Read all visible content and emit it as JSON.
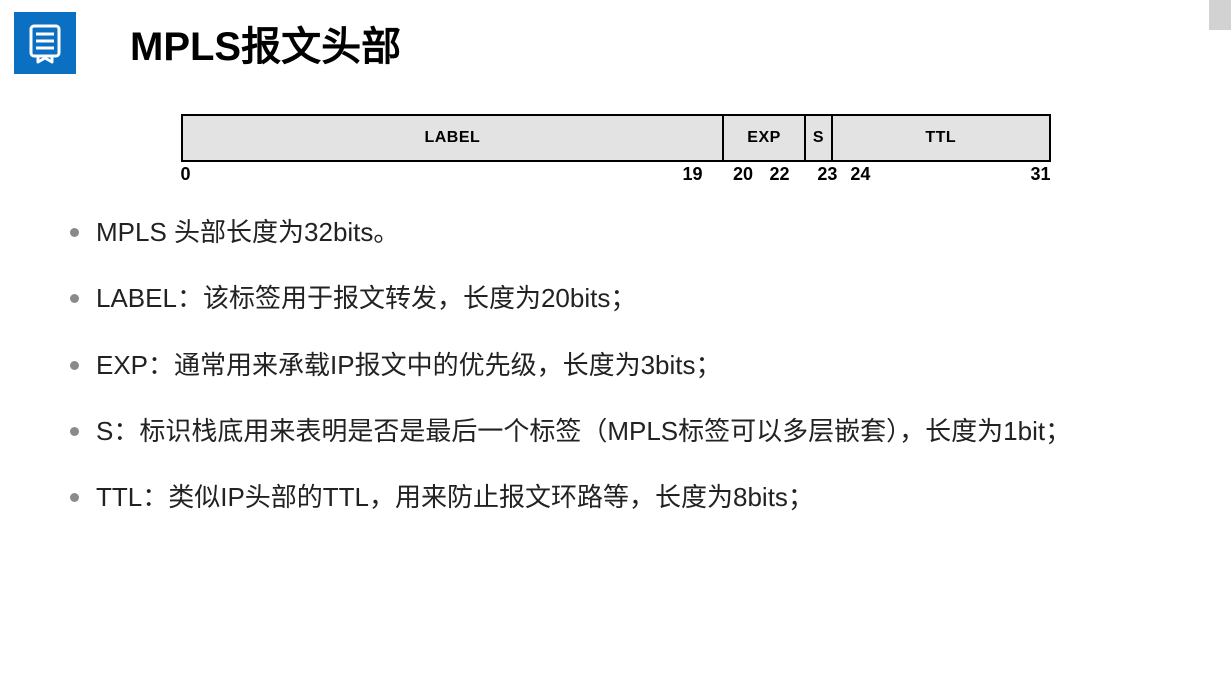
{
  "colors": {
    "primary": "#0b6fc2",
    "title_text": "#2c2c2c",
    "field_bg": "#e3e3e3",
    "field_border": "#000000",
    "bullet_dot": "#8a8a8a",
    "body_text": "#222222"
  },
  "header": {
    "title": "MPLS报文头部",
    "icon_name": "document-list-icon"
  },
  "diagram": {
    "total_bits": 32,
    "background_color": "#e3e3e3",
    "border_color": "#000000",
    "label_fontsize": 16,
    "bit_fontsize": 18,
    "fields": [
      {
        "name": "LABEL",
        "start": 0,
        "end": 19,
        "bits": 20
      },
      {
        "name": "EXP",
        "start": 20,
        "end": 22,
        "bits": 3
      },
      {
        "name": "S",
        "start": 23,
        "end": 23,
        "bits": 1
      },
      {
        "name": "TTL",
        "start": 24,
        "end": 31,
        "bits": 8
      }
    ],
    "bit_markers": [
      {
        "value": "0",
        "pos_pct": 0.0,
        "align": "left"
      },
      {
        "value": "19",
        "pos_pct": 60.0,
        "align": "right"
      },
      {
        "value": "20",
        "pos_pct": 63.5,
        "align": "left"
      },
      {
        "value": "22",
        "pos_pct": 70.0,
        "align": "right"
      },
      {
        "value": "23",
        "pos_pct": 73.2,
        "align": "left"
      },
      {
        "value": "24",
        "pos_pct": 77.0,
        "align": "left"
      },
      {
        "value": "31",
        "pos_pct": 100.0,
        "align": "right"
      }
    ]
  },
  "bullets": [
    "MPLS 头部长度为32bits。",
    "LABEL：该标签用于报文转发，长度为20bits；",
    "EXP：通常用来承载IP报文中的优先级，长度为3bits；",
    "S：标识栈底用来表明是否是最后一个标签（MPLS标签可以多层嵌套），长度为1bit；",
    "TTL：类似IP头部的TTL，用来防止报文环路等，长度为8bits；"
  ]
}
